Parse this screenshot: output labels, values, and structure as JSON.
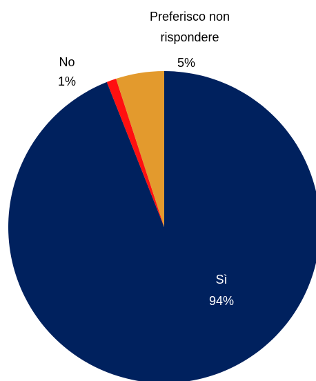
{
  "chart_data": {
    "type": "pie",
    "title": "",
    "slices": [
      {
        "category": "Sì",
        "value": 94,
        "percent_label": "94%",
        "color": "#00215E"
      },
      {
        "category": "No",
        "value": 1,
        "percent_label": "1%",
        "color": "#FF1010"
      },
      {
        "category": "Preferisco non rispondere",
        "value": 5,
        "percent_label": "5%",
        "color": "#E39A2D"
      }
    ],
    "start_angle_deg": 0,
    "direction": "clockwise",
    "legend": "none"
  }
}
